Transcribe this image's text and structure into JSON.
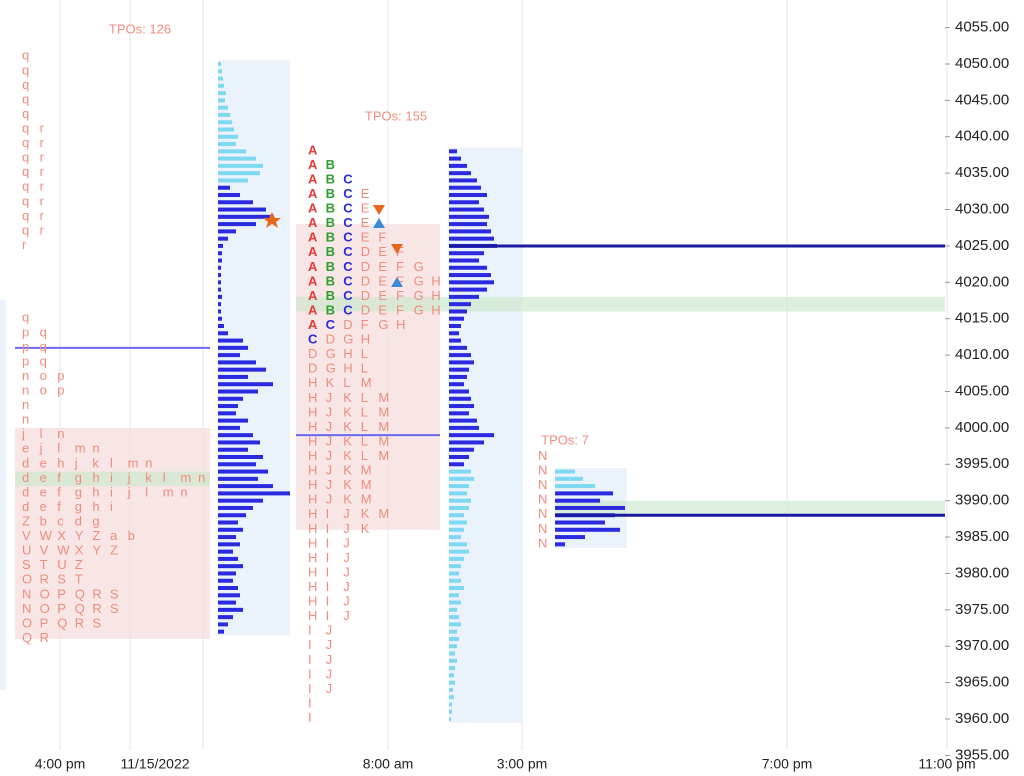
{
  "chart_data": {
    "type": "tpo-profile",
    "ylim": [
      3955,
      4055
    ],
    "yticks": [
      {
        "value": 3955,
        "label": "3955.00"
      },
      {
        "value": 3960,
        "label": "3960.00"
      },
      {
        "value": 3965,
        "label": "3965.00"
      },
      {
        "value": 3970,
        "label": "3970.00"
      },
      {
        "value": 3975,
        "label": "3975.00"
      },
      {
        "value": 3980,
        "label": "3980.00"
      },
      {
        "value": 3985,
        "label": "3985.00"
      },
      {
        "value": 3990,
        "label": "3990.00"
      },
      {
        "value": 3995,
        "label": "3995.00"
      },
      {
        "value": 4000,
        "label": "4000.00"
      },
      {
        "value": 4005,
        "label": "4005.00"
      },
      {
        "value": 4010,
        "label": "4010.00"
      },
      {
        "value": 4015,
        "label": "4015.00"
      },
      {
        "value": 4020,
        "label": "4020.00"
      },
      {
        "value": 4025,
        "label": "4025.00"
      },
      {
        "value": 4030,
        "label": "4030.00"
      },
      {
        "value": 4035,
        "label": "4035.00"
      },
      {
        "value": 4040,
        "label": "4040.00"
      },
      {
        "value": 4045,
        "label": "4045.00"
      },
      {
        "value": 4050,
        "label": "4050.00"
      },
      {
        "value": 4055,
        "label": "4055.00"
      }
    ],
    "xticks": [
      "4:00 pm",
      "11/15/2022",
      "8:00 am",
      "3:00 pm",
      "7:00 pm",
      "11:00 pm"
    ],
    "annotations": [
      "TPOs: 126",
      "TPOs: 155",
      "TPOs: 7"
    ],
    "letter_colors": {
      "A": "#e53935",
      "B": "#2e9e2e",
      "C": "#2a2ae0"
    },
    "default_letter_color": "#f08c7c",
    "tpo_blocks": [
      {
        "top": 4051,
        "step": 2,
        "rows": [
          "q",
          "q",
          "q",
          "q",
          "q",
          "q r",
          "q r",
          "q r",
          "q r",
          "q r",
          "q r",
          "q r",
          "q r",
          "r"
        ]
      },
      {
        "top": 4015,
        "step": 2,
        "rows": [
          "q",
          "p q",
          "p q",
          "p q",
          "n o p",
          "n o p",
          "n",
          "n",
          "j l n",
          "e j l m n",
          "d e h j k l m n",
          "d e f g h i j k l m n",
          "d e f g h i j l m n",
          "d e f g h i",
          "Z b c d g",
          "V W X Y Z a b",
          "U V W X Y Z",
          "S T U Z",
          "O R S T",
          "N O P Q R S",
          "N O P Q R S",
          "O P Q R S",
          "Q R"
        ]
      },
      {
        "top": 4038,
        "step": 2,
        "rows": [
          "A",
          "A B",
          "A B C",
          "A B C E",
          "A B C E",
          "A B C E",
          "A B C E F",
          "A B C D E F",
          "A B C D E F G",
          "A B C D E F G H",
          "A B C D E F G H",
          "A B C D E F G H",
          "A C D F G H",
          "C D G H",
          "D G H L",
          "D G H L",
          "H K L M",
          "H J K L M",
          "H J K L M",
          "H J K L M",
          "H J K L M",
          "H J K L M",
          "H J K M",
          "H J K M",
          "H J K M",
          "H I J K M",
          "H I J K",
          "H I J",
          "H I J",
          "H I J",
          "H I J",
          "H I J",
          "H I J",
          "I J",
          "I J",
          "I J",
          "I J",
          "I J",
          "I",
          "I"
        ]
      },
      {
        "top": 3996,
        "step": 2,
        "rows": [
          "N",
          "N",
          "N",
          "N",
          "N",
          "N",
          "N"
        ]
      }
    ],
    "profiles": [
      {
        "start": 4050,
        "step": 1,
        "split": 4034,
        "upper_color": "#7fd8f2",
        "lower_color": "#2a2ae0",
        "values": [
          3,
          4,
          5,
          6,
          8,
          7,
          10,
          12,
          14,
          16,
          20,
          18,
          28,
          38,
          45,
          42,
          30,
          12,
          22,
          35,
          48,
          55,
          38,
          18,
          10,
          5,
          4,
          4,
          3,
          3,
          3,
          3,
          4,
          3,
          3,
          4,
          6,
          10,
          25,
          30,
          22,
          38,
          48,
          30,
          55,
          40,
          25,
          20,
          18,
          30,
          22,
          35,
          42,
          30,
          45,
          38,
          50,
          40,
          55,
          72,
          45,
          35,
          28,
          20,
          25,
          18,
          22,
          15,
          20,
          25,
          18,
          15,
          20,
          22,
          18,
          25,
          15,
          10,
          6
        ]
      },
      {
        "start": 4038,
        "step": 1,
        "split": 3995,
        "upper_color": "#2a2ae0",
        "lower_color": "#7fd8f2",
        "values": [
          8,
          12,
          18,
          22,
          28,
          32,
          38,
          30,
          35,
          40,
          38,
          42,
          45,
          48,
          35,
          30,
          38,
          42,
          45,
          38,
          30,
          22,
          18,
          15,
          12,
          10,
          12,
          18,
          22,
          25,
          20,
          18,
          15,
          20,
          22,
          25,
          20,
          28,
          30,
          45,
          35,
          25,
          20,
          15,
          22,
          25,
          20,
          18,
          22,
          20,
          15,
          18,
          15,
          12,
          18,
          20,
          15,
          12,
          10,
          12,
          15,
          10,
          12,
          8,
          10,
          12,
          8,
          10,
          8,
          6,
          8,
          6,
          5,
          6,
          4,
          5,
          3,
          3,
          2
        ]
      },
      {
        "start": 3994,
        "step": 1,
        "split": 3992,
        "upper_color": "#7fd8f2",
        "lower_color": "#2a2ae0",
        "values": [
          20,
          28,
          40,
          58,
          45,
          70,
          60,
          50,
          65,
          30,
          10
        ]
      }
    ],
    "value_areas": [
      {
        "high": 4000,
        "low": 3971
      },
      {
        "high": 4028,
        "low": 3986
      }
    ],
    "poc_bands": [
      {
        "high": 3994,
        "low": 3992
      },
      {
        "high": 4018,
        "low": 4016
      },
      {
        "high": 3990,
        "low": 3988
      }
    ],
    "levels": [
      {
        "price": 4011,
        "color": "#6a6af0"
      },
      {
        "price": 3999,
        "color": "#6a6af0"
      },
      {
        "price": 4025,
        "color": "#1a1aa0"
      },
      {
        "price": 3988,
        "color": "#1a1aa0"
      }
    ]
  }
}
